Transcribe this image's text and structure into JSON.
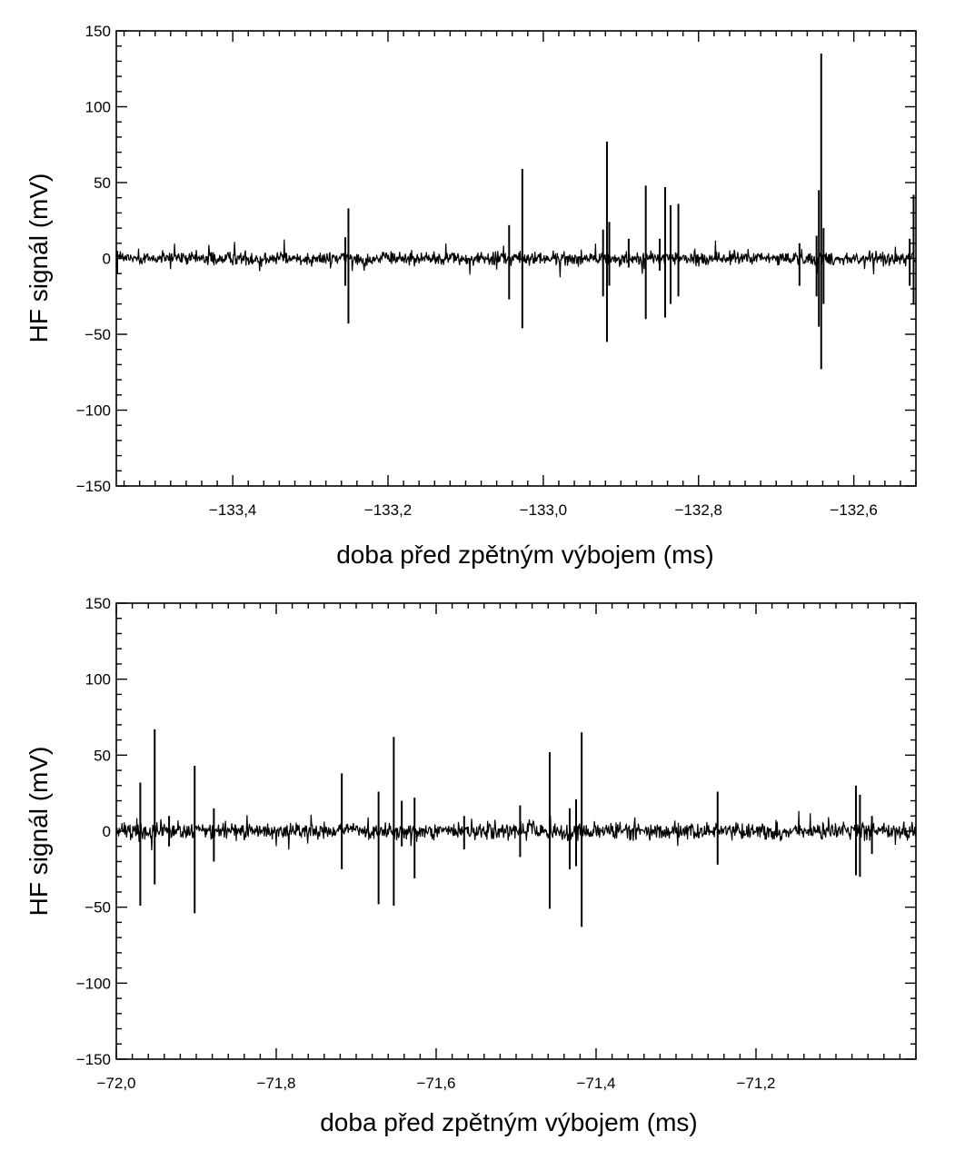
{
  "chart_data": [
    {
      "type": "line",
      "xlabel": "doba před zpětným výbojem (ms)",
      "ylabel": "HF signál (mV)",
      "xlim": [
        -133.55,
        -132.52
      ],
      "ylim": [
        -150,
        150
      ],
      "x_ticks": [
        -133.4,
        -133.2,
        -133.0,
        -132.8,
        -132.6
      ],
      "x_tick_labels": [
        "−133,4",
        "−133,2",
        "−133,0",
        "−132,8",
        "−132,6"
      ],
      "y_ticks": [
        -150,
        -100,
        -50,
        0,
        50,
        100,
        150
      ],
      "y_tick_labels": [
        "−150",
        "−100",
        "−50",
        "0",
        "50",
        "100",
        "150"
      ],
      "noise_amplitude_mV": 5,
      "spikes": [
        {
          "x": -133.55,
          "max": 5,
          "min": -10
        },
        {
          "x": -133.255,
          "max": 14,
          "min": -18
        },
        {
          "x": -133.251,
          "max": 33,
          "min": -43
        },
        {
          "x": -133.044,
          "max": 22,
          "min": -27
        },
        {
          "x": -133.027,
          "max": 59,
          "min": -46
        },
        {
          "x": -132.923,
          "max": 19,
          "min": -25
        },
        {
          "x": -132.918,
          "max": 77,
          "min": -55
        },
        {
          "x": -132.915,
          "max": 24,
          "min": -18
        },
        {
          "x": -132.89,
          "max": 13,
          "min": -6
        },
        {
          "x": -132.868,
          "max": 48,
          "min": -40
        },
        {
          "x": -132.85,
          "max": 13,
          "min": -8
        },
        {
          "x": -132.843,
          "max": 47,
          "min": -39
        },
        {
          "x": -132.836,
          "max": 35,
          "min": -30
        },
        {
          "x": -132.826,
          "max": 36,
          "min": -25
        },
        {
          "x": -132.67,
          "max": 10,
          "min": -18
        },
        {
          "x": -132.648,
          "max": 15,
          "min": -25
        },
        {
          "x": -132.645,
          "max": 45,
          "min": -45
        },
        {
          "x": -132.642,
          "max": 135,
          "min": -73
        },
        {
          "x": -132.639,
          "max": 20,
          "min": -30
        },
        {
          "x": -132.528,
          "max": 13,
          "min": -18
        },
        {
          "x": -132.523,
          "max": 42,
          "min": -30
        }
      ]
    },
    {
      "type": "line",
      "xlabel": "doba před zpětným výbojem (ms)",
      "ylabel": "HF signál (mV)",
      "xlim": [
        -72.0,
        -71.0
      ],
      "ylim": [
        -150,
        150
      ],
      "x_ticks": [
        -72.0,
        -71.8,
        -71.6,
        -71.4,
        -71.2
      ],
      "x_tick_labels": [
        "−72,0",
        "−71,8",
        "−71,6",
        "−71,4",
        "−71,2"
      ],
      "y_ticks": [
        -150,
        -100,
        -50,
        0,
        50,
        100,
        150
      ],
      "y_tick_labels": [
        "−150",
        "−100",
        "−50",
        "0",
        "50",
        "100",
        "150"
      ],
      "noise_amplitude_mV": 6,
      "spikes": [
        {
          "x": -71.97,
          "max": 32,
          "min": -49
        },
        {
          "x": -71.952,
          "max": 67,
          "min": -35
        },
        {
          "x": -71.934,
          "max": 10,
          "min": -10
        },
        {
          "x": -71.902,
          "max": 43,
          "min": -54
        },
        {
          "x": -71.878,
          "max": 15,
          "min": -20
        },
        {
          "x": -71.718,
          "max": 38,
          "min": -25
        },
        {
          "x": -71.672,
          "max": 26,
          "min": -48
        },
        {
          "x": -71.653,
          "max": 62,
          "min": -49
        },
        {
          "x": -71.643,
          "max": 20,
          "min": -10
        },
        {
          "x": -71.627,
          "max": 22,
          "min": -31
        },
        {
          "x": -71.565,
          "max": 10,
          "min": -12
        },
        {
          "x": -71.495,
          "max": 17,
          "min": -17
        },
        {
          "x": -71.458,
          "max": 52,
          "min": -51
        },
        {
          "x": -71.433,
          "max": 15,
          "min": -25
        },
        {
          "x": -71.425,
          "max": 21,
          "min": -23
        },
        {
          "x": -71.418,
          "max": 65,
          "min": -63
        },
        {
          "x": -71.248,
          "max": 26,
          "min": -22
        },
        {
          "x": -71.075,
          "max": 30,
          "min": -29
        },
        {
          "x": -71.07,
          "max": 24,
          "min": -30
        },
        {
          "x": -71.055,
          "max": 10,
          "min": -15
        }
      ]
    }
  ]
}
